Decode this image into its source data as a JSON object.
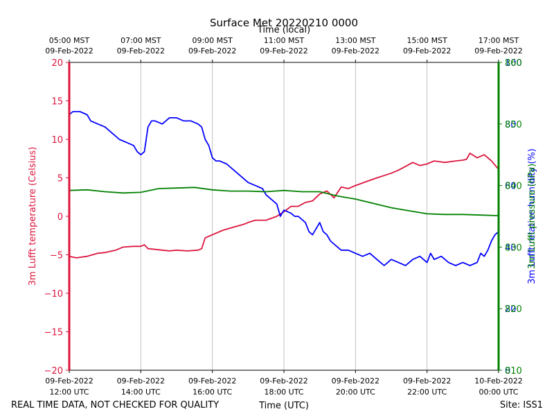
{
  "chart_data": {
    "type": "line",
    "title": "Surface Met 20220210 0000",
    "top_axis_label": "Time (local)",
    "xlabel": "Time (UTC)",
    "footer_left": "REAL TIME DATA, NOT CHECKED FOR QUALITY",
    "footer_right": "Site: ISS1",
    "xlim": [
      12,
      24
    ],
    "x_ticks_bottom": [
      {
        "x": 12,
        "date": "09-Feb-2022",
        "time": "12:00 UTC"
      },
      {
        "x": 14,
        "date": "09-Feb-2022",
        "time": "14:00 UTC"
      },
      {
        "x": 16,
        "date": "09-Feb-2022",
        "time": "16:00 UTC"
      },
      {
        "x": 18,
        "date": "09-Feb-2022",
        "time": "18:00 UTC"
      },
      {
        "x": 20,
        "date": "09-Feb-2022",
        "time": "20:00 UTC"
      },
      {
        "x": 22,
        "date": "09-Feb-2022",
        "time": "22:00 UTC"
      },
      {
        "x": 24,
        "date": "10-Feb-2022",
        "time": "00:00 UTC"
      }
    ],
    "x_ticks_top": [
      {
        "x": 12,
        "time": "05:00 MST",
        "date": "09-Feb-2022"
      },
      {
        "x": 14,
        "time": "07:00 MST",
        "date": "09-Feb-2022"
      },
      {
        "x": 16,
        "time": "09:00 MST",
        "date": "09-Feb-2022"
      },
      {
        "x": 18,
        "time": "11:00 MST",
        "date": "09-Feb-2022"
      },
      {
        "x": 20,
        "time": "13:00 MST",
        "date": "09-Feb-2022"
      },
      {
        "x": 22,
        "time": "15:00 MST",
        "date": "09-Feb-2022"
      },
      {
        "x": 24,
        "time": "17:00 MST",
        "date": "09-Feb-2022"
      }
    ],
    "axes": {
      "left": {
        "label": "3m Lufft temperature (Celsius)",
        "color": "#dc143c",
        "ylim": [
          -20,
          20
        ],
        "ticks": [
          -20,
          -15,
          -10,
          -5,
          0,
          5,
          10,
          15,
          20
        ]
      },
      "right_blue": {
        "label": "3m Lufft relative humidity (%)",
        "color": "#0000ff",
        "ylim": [
          0,
          100
        ],
        "ticks": [
          0,
          20,
          40,
          60,
          80,
          100
        ]
      },
      "right_green": {
        "label": "3m Lufft pressure (hPa)",
        "color": "#008000",
        "ylim": [
          810,
          860
        ],
        "ticks": [
          810,
          820,
          830,
          840,
          850,
          860
        ]
      }
    },
    "grid": {
      "vertical": true,
      "horizontal": false
    },
    "series": [
      {
        "name": "3m Lufft temperature (Celsius)",
        "axis": "left",
        "color": "#dc143c",
        "x": [
          12.0,
          12.2,
          12.5,
          12.8,
          13.0,
          13.3,
          13.5,
          13.8,
          14.0,
          14.1,
          14.2,
          14.4,
          14.6,
          14.8,
          15.0,
          15.3,
          15.6,
          15.7,
          15.8,
          16.0,
          16.3,
          16.6,
          16.9,
          17.0,
          17.2,
          17.5,
          17.8,
          18.0,
          18.2,
          18.4,
          18.6,
          18.8,
          19.0,
          19.2,
          19.4,
          19.6,
          19.8,
          20.0,
          20.3,
          20.6,
          20.8,
          21.0,
          21.2,
          21.4,
          21.6,
          21.8,
          22.0,
          22.2,
          22.5,
          22.8,
          23.0,
          23.1,
          23.2,
          23.4,
          23.6,
          23.8,
          24.0
        ],
        "values": [
          -5.2,
          -5.4,
          -5.2,
          -4.8,
          -4.7,
          -4.4,
          -4.0,
          -3.9,
          -3.9,
          -3.7,
          -4.2,
          -4.3,
          -4.4,
          -4.5,
          -4.4,
          -4.5,
          -4.4,
          -4.2,
          -2.8,
          -2.4,
          -1.8,
          -1.4,
          -1.0,
          -0.8,
          -0.5,
          -0.5,
          0.0,
          0.6,
          1.3,
          1.3,
          1.8,
          2.0,
          2.9,
          3.3,
          2.4,
          3.8,
          3.6,
          4.0,
          4.5,
          5.0,
          5.3,
          5.6,
          6.0,
          6.5,
          7.0,
          6.6,
          6.8,
          7.2,
          7.0,
          7.2,
          7.3,
          7.4,
          8.2,
          7.6,
          8.0,
          7.2,
          6.1
        ]
      },
      {
        "name": "3m Lufft relative humidity (%)",
        "axis": "right_blue",
        "color": "#0000ff",
        "x": [
          12.0,
          12.1,
          12.3,
          12.5,
          12.6,
          12.8,
          13.0,
          13.2,
          13.4,
          13.6,
          13.8,
          13.9,
          14.0,
          14.1,
          14.2,
          14.3,
          14.4,
          14.6,
          14.8,
          15.0,
          15.2,
          15.4,
          15.6,
          15.7,
          15.8,
          15.9,
          16.0,
          16.1,
          16.2,
          16.4,
          16.6,
          16.8,
          17.0,
          17.2,
          17.4,
          17.5,
          17.7,
          17.8,
          17.9,
          18.0,
          18.2,
          18.3,
          18.4,
          18.6,
          18.7,
          18.8,
          18.9,
          19.0,
          19.1,
          19.2,
          19.3,
          19.4,
          19.5,
          19.6,
          19.8,
          20.0,
          20.2,
          20.4,
          20.6,
          20.8,
          21.0,
          21.2,
          21.4,
          21.6,
          21.8,
          22.0,
          22.1,
          22.2,
          22.4,
          22.6,
          22.8,
          23.0,
          23.2,
          23.4,
          23.5,
          23.6,
          23.7,
          23.8,
          23.9,
          24.0
        ],
        "values": [
          83,
          84,
          84,
          83,
          81,
          80,
          79,
          77,
          75,
          74,
          73,
          71,
          70,
          71,
          79,
          81,
          81,
          80,
          82,
          82,
          81,
          81,
          80,
          79,
          75,
          73,
          69,
          68,
          68,
          67,
          65,
          63,
          61,
          60,
          59,
          57,
          55,
          54,
          50,
          52,
          51,
          50,
          50,
          48,
          45,
          44,
          46,
          48,
          45,
          44,
          42,
          41,
          40,
          39,
          39,
          38,
          37,
          38,
          36,
          34,
          36,
          35,
          34,
          36,
          37,
          35,
          38,
          36,
          37,
          35,
          34,
          35,
          34,
          35,
          38,
          37,
          39,
          42,
          44,
          45
        ]
      },
      {
        "name": "3m Lufft pressure (hPa)",
        "axis": "right_green",
        "color": "#008000",
        "x": [
          12.0,
          12.5,
          13.0,
          13.5,
          14.0,
          14.5,
          15.0,
          15.5,
          16.0,
          16.5,
          17.0,
          17.5,
          18.0,
          18.5,
          19.0,
          19.5,
          20.0,
          20.5,
          21.0,
          21.5,
          22.0,
          22.5,
          23.0,
          23.5,
          24.0
        ],
        "values": [
          839.2,
          839.3,
          839.0,
          838.8,
          838.9,
          839.5,
          839.6,
          839.7,
          839.3,
          839.1,
          839.1,
          839.0,
          839.2,
          839.0,
          839.0,
          838.3,
          837.8,
          837.1,
          836.4,
          835.9,
          835.4,
          835.3,
          835.3,
          835.2,
          835.1
        ]
      }
    ]
  }
}
